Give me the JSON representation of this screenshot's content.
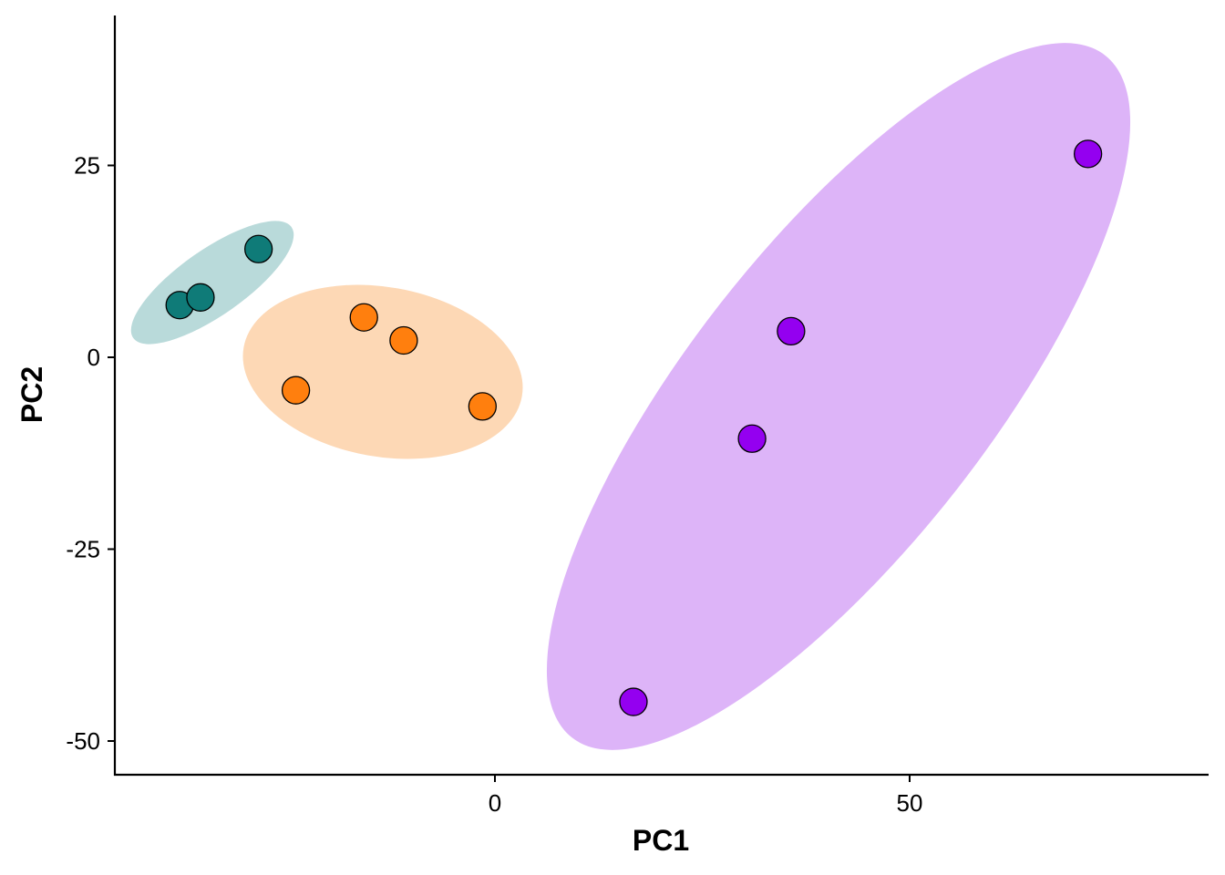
{
  "chart_data": {
    "type": "scatter",
    "title": "",
    "xlabel": "PC1",
    "ylabel": "PC2",
    "xlim": [
      -46,
      86
    ],
    "ylim": [
      -54,
      45
    ],
    "x_ticks": [
      0,
      50
    ],
    "x_tick_labels": [
      "0",
      "50"
    ],
    "y_ticks": [
      25,
      0,
      -25,
      -50
    ],
    "y_tick_labels": [
      "25",
      "0",
      "-25",
      "-50"
    ],
    "grid": false,
    "legend": "none",
    "series": [
      {
        "color": "#0F7B78",
        "ellipse_fill": "#B9DADA",
        "points": [
          {
            "x": -38,
            "y": 6.8
          },
          {
            "x": -35.5,
            "y": 7.8
          },
          {
            "x": -28.5,
            "y": 14.1
          }
        ]
      },
      {
        "color": "#FF7F0E",
        "ellipse_fill": "#FDD8B5",
        "points": [
          {
            "x": -24,
            "y": -4.3
          },
          {
            "x": -15.8,
            "y": 5.2
          },
          {
            "x": -11,
            "y": 2.2
          },
          {
            "x": -1.5,
            "y": -6.4
          }
        ]
      },
      {
        "color": "#9400F0",
        "ellipse_fill": "#DDB4F8",
        "points": [
          {
            "x": 16.7,
            "y": -44.9
          },
          {
            "x": 31,
            "y": -10.6
          },
          {
            "x": 35.7,
            "y": 3.4
          },
          {
            "x": 71.5,
            "y": 26.5
          }
        ]
      }
    ]
  }
}
